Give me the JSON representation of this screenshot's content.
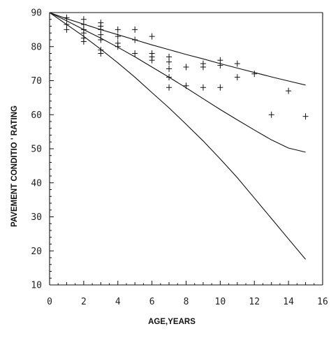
{
  "chart_data": {
    "type": "scatter",
    "title": "",
    "xlabel": "AGE,YEARS",
    "ylabel": "PAVEMENT CONDITIO ' RATING",
    "xlim": [
      0,
      16
    ],
    "ylim": [
      10,
      90
    ],
    "xticks": [
      0,
      2,
      4,
      6,
      8,
      10,
      12,
      14,
      16
    ],
    "yticks": [
      10,
      20,
      30,
      40,
      50,
      60,
      70,
      80,
      90
    ],
    "grid": false,
    "series": [
      {
        "points": [
          [
            1,
            88.5
          ],
          [
            1,
            86.5
          ],
          [
            1,
            85
          ],
          [
            2,
            88
          ],
          [
            2,
            86.5
          ],
          [
            2,
            85
          ],
          [
            2,
            84
          ],
          [
            2,
            82.5
          ],
          [
            2,
            81.5
          ],
          [
            3,
            87
          ],
          [
            3,
            86
          ],
          [
            3,
            85
          ],
          [
            3,
            83.5
          ],
          [
            3,
            82
          ],
          [
            3,
            79
          ],
          [
            3,
            78
          ],
          [
            4,
            85
          ],
          [
            4,
            83
          ],
          [
            4,
            81
          ],
          [
            4,
            80
          ],
          [
            5,
            85
          ],
          [
            5,
            82
          ],
          [
            5,
            78
          ],
          [
            6,
            83
          ],
          [
            6,
            78
          ],
          [
            6,
            77
          ],
          [
            6,
            76
          ],
          [
            7,
            77
          ],
          [
            7,
            75.5
          ],
          [
            7,
            73.5
          ],
          [
            7,
            71
          ],
          [
            7,
            68
          ],
          [
            8,
            74
          ],
          [
            8,
            68.5
          ],
          [
            9,
            75
          ],
          [
            9,
            74
          ],
          [
            9,
            68
          ],
          [
            10,
            76
          ],
          [
            10,
            74.5
          ],
          [
            10,
            68
          ],
          [
            11,
            75
          ],
          [
            11,
            71
          ],
          [
            12,
            72
          ],
          [
            13,
            60
          ],
          [
            14,
            67
          ],
          [
            15,
            59.5
          ]
        ]
      }
    ],
    "curves": [
      {
        "x": [
          0,
          1,
          2,
          3,
          4,
          5,
          6,
          7,
          8,
          9,
          10,
          11,
          12,
          13,
          14,
          15
        ],
        "y": [
          90,
          88.2,
          86.6,
          85.0,
          83.5,
          82.0,
          80.5,
          79.1,
          77.7,
          76.4,
          75.0,
          73.7,
          72.4,
          71.1,
          69.9,
          68.7
        ]
      },
      {
        "x": [
          0,
          1,
          2,
          3,
          4,
          5,
          6,
          7,
          8,
          9,
          10,
          11,
          12,
          13,
          14,
          15
        ],
        "y": [
          90,
          87.6,
          85.0,
          82.5,
          79.8,
          77.0,
          74.0,
          71.0,
          67.9,
          64.7,
          61.5,
          58.5,
          55.5,
          52.6,
          50.2,
          49.0
        ]
      },
      {
        "x": [
          0,
          1,
          2,
          3,
          4,
          5,
          6,
          7,
          8,
          9,
          10,
          11,
          12,
          13,
          14,
          15
        ],
        "y": [
          90,
          86.5,
          83.0,
          79.2,
          75.2,
          71.0,
          66.5,
          62.0,
          57.2,
          52.3,
          47.0,
          41.5,
          35.5,
          29.5,
          23.5,
          17.5
        ]
      }
    ]
  }
}
